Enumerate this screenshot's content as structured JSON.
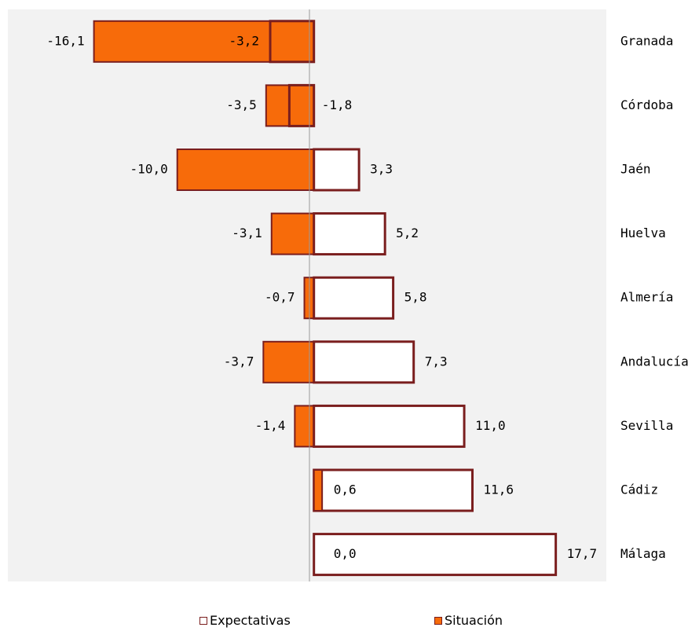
{
  "chart_data": {
    "type": "bar",
    "orientation": "horizontal",
    "categories": [
      "Granada",
      "Córdoba",
      "Jaén",
      "Huelva",
      "Almería",
      "Andalucía",
      "Sevilla",
      "Cádiz",
      "Málaga"
    ],
    "series": [
      {
        "name": "Expectativas",
        "values": [
          -3.2,
          -1.8,
          3.3,
          5.2,
          5.8,
          7.3,
          11.0,
          11.6,
          17.7
        ],
        "labels": [
          "-3,2",
          "-1,8",
          "3,3",
          "5,2",
          "5,8",
          "7,3",
          "11,0",
          "11,6",
          "17,7"
        ],
        "fill": "#ffffff",
        "stroke": "#7a1e1e"
      },
      {
        "name": "Situación",
        "values": [
          -16.1,
          -3.5,
          -10.0,
          -3.1,
          -0.7,
          -3.7,
          -1.4,
          0.6,
          0.0
        ],
        "labels": [
          "-16,1",
          "-3,5",
          "-10,0",
          "-3,1",
          "-0,7",
          "-3,7",
          "-1,4",
          "0,6",
          "0,0"
        ],
        "fill": "#f76b0a",
        "stroke": "#7a1e1e"
      }
    ],
    "xlim": [
      -22.4,
      21.4
    ],
    "grid": false,
    "legend_position": "bottom",
    "plot_background": "#f2f2f2",
    "axis_color": "#999999"
  },
  "legend": {
    "expectativas": "Expectativas",
    "situacion": "Situación"
  }
}
